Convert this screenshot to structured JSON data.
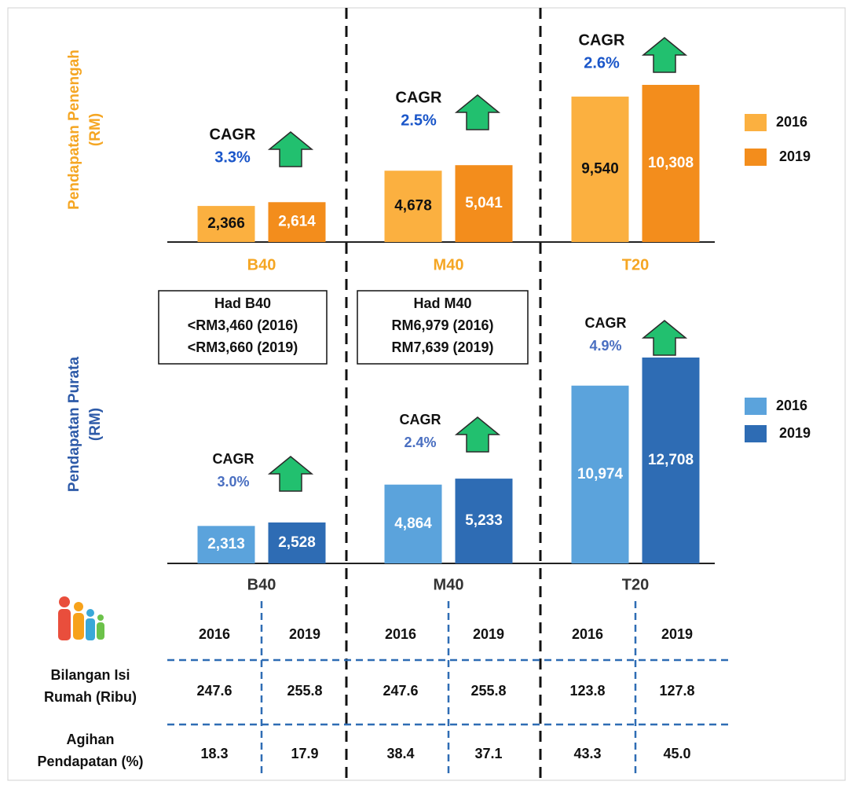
{
  "chart_data": [
    {
      "type": "bar",
      "ylabel": [
        "Pendapatan Penengah",
        "(RM)"
      ],
      "categories": [
        "B40",
        "M40",
        "T20"
      ],
      "series": [
        {
          "name": "2016",
          "color": "#fbb040",
          "values": [
            2366,
            4678,
            9540
          ],
          "value_labels": [
            "2,366",
            "4,678",
            "9,540"
          ]
        },
        {
          "name": "2019",
          "color": "#f38d1c",
          "values": [
            2614,
            5041,
            10308
          ],
          "value_labels": [
            "2,614",
            "5,041",
            "10,308"
          ]
        }
      ],
      "annotations": [
        {
          "label": "CAGR",
          "value": "3.3%"
        },
        {
          "label": "CAGR",
          "value": "2.5%"
        },
        {
          "label": "CAGR",
          "value": "2.6%"
        }
      ]
    },
    {
      "type": "bar",
      "ylabel": [
        "Pendapatan Purata",
        "(RM)"
      ],
      "categories": [
        "B40",
        "M40",
        "T20"
      ],
      "series": [
        {
          "name": "2016",
          "color": "#5ba3dc",
          "values": [
            2313,
            4864,
            10974
          ],
          "value_labels": [
            "2,313",
            "4,864",
            "10,974"
          ]
        },
        {
          "name": "2019",
          "color": "#2e6cb4",
          "values": [
            2528,
            5233,
            12708
          ],
          "value_labels": [
            "2,528",
            "5,233",
            "12,708"
          ]
        }
      ],
      "annotations": [
        {
          "label": "CAGR",
          "value": "3.0%"
        },
        {
          "label": "CAGR",
          "value": "2.4%"
        },
        {
          "label": "CAGR",
          "value": "4.9%"
        }
      ]
    }
  ],
  "boxes": [
    {
      "title": "Had B40",
      "lines": [
        "<RM3,460 (2016)",
        "<RM3,660 (2019)"
      ]
    },
    {
      "title": "Had M40",
      "lines": [
        "RM6,979 (2016)",
        "RM7,639 (2019)"
      ]
    }
  ],
  "table": {
    "header": [
      "2016",
      "2019",
      "2016",
      "2019",
      "2016",
      "2019"
    ],
    "rows": [
      {
        "label": [
          "Bilangan Isi",
          "Rumah (Ribu)"
        ],
        "values": [
          "247.6",
          "255.8",
          "247.6",
          "255.8",
          "123.8",
          "127.8"
        ]
      },
      {
        "label": [
          "Agihan",
          "Pendapatan (%)"
        ],
        "values": [
          "18.3",
          "17.9",
          "38.4",
          "37.1",
          "43.3",
          "45.0"
        ]
      }
    ]
  }
}
